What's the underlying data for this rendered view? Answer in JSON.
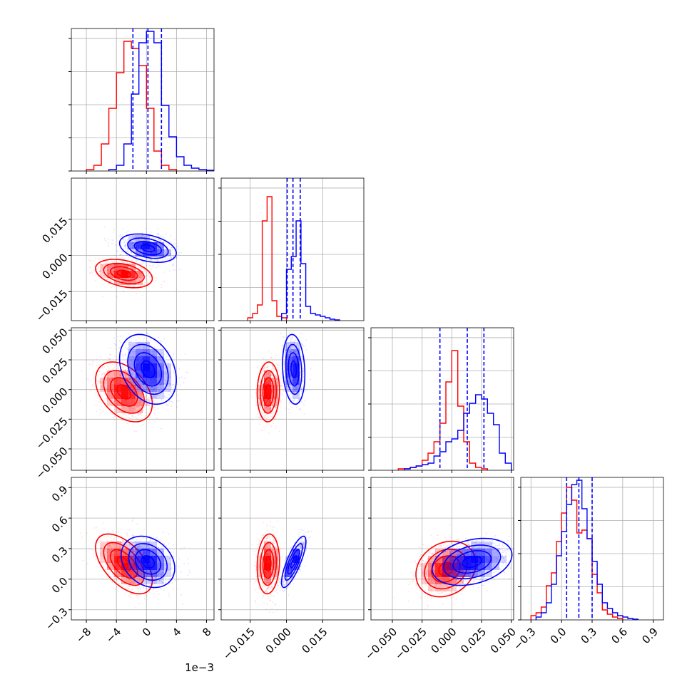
{
  "chart_data": {
    "type": "corner",
    "grid": true,
    "offset_text": "1e−3",
    "parameters": [
      {
        "range": [
          -10,
          9
        ],
        "ticks": [
          -8,
          -4,
          0,
          4,
          8
        ],
        "tick_labels": [
          "−8",
          "−4",
          "0",
          "4",
          "8"
        ]
      },
      {
        "range": [
          -0.027,
          0.032
        ],
        "ticks": [
          -0.015,
          0.0,
          0.015
        ],
        "tick_labels": [
          "−0.015",
          "0.000",
          "0.015"
        ]
      },
      {
        "range": [
          -0.068,
          0.052
        ],
        "ticks": [
          -0.05,
          -0.025,
          0.0,
          0.025,
          0.05
        ],
        "tick_labels": [
          "−0.050",
          "−0.025",
          "0.000",
          "0.025",
          "0.050"
        ]
      },
      {
        "range": [
          -0.4,
          1.0
        ],
        "ticks": [
          -0.3,
          0.0,
          0.3,
          0.6,
          0.9
        ],
        "tick_labels": [
          "−0.3",
          "0.0",
          "0.3",
          "0.6",
          "0.9"
        ]
      }
    ],
    "series": [
      {
        "color": "#ff0000",
        "marginals": [
          {
            "bins": [
              -8.0,
              -7.0,
              -6.0,
              -5.0,
              -4.0,
              -3.0,
              -2.0,
              -1.0,
              0.0,
              1.0,
              2.0,
              3.0
            ],
            "density": [
              0.01,
              0.04,
              0.19,
              0.44,
              0.69,
              0.91,
              0.86,
              0.74,
              0.44,
              0.14,
              0.04,
              0.01
            ]
          },
          {
            "bins": [
              -0.016,
              -0.014,
              -0.012,
              -0.01,
              -0.008,
              -0.006,
              -0.004,
              -0.002
            ],
            "density": [
              0.02,
              0.05,
              0.11,
              0.7,
              0.87,
              0.14,
              0.03,
              0.02
            ]
          },
          {
            "bins": [
              -0.045,
              -0.04,
              -0.035,
              -0.03,
              -0.025,
              -0.02,
              -0.015,
              -0.01,
              -0.005,
              0.0,
              0.005,
              0.01,
              0.015,
              0.02,
              0.025
            ],
            "density": [
              0.01,
              0.01,
              0.02,
              0.03,
              0.07,
              0.12,
              0.2,
              0.33,
              0.62,
              0.84,
              0.45,
              0.2,
              0.05,
              0.02,
              0.01
            ]
          },
          {
            "bins": [
              -0.3,
              -0.25,
              -0.2,
              -0.15,
              -0.1,
              -0.05,
              0.0,
              0.05,
              0.1,
              0.15,
              0.2,
              0.25,
              0.3,
              0.35,
              0.4,
              0.45,
              0.5,
              0.55
            ],
            "density": [
              0.03,
              0.05,
              0.09,
              0.24,
              0.33,
              0.55,
              0.75,
              0.93,
              0.84,
              0.61,
              0.63,
              0.57,
              0.32,
              0.19,
              0.07,
              0.04,
              0.02,
              0.01
            ]
          }
        ],
        "joints": [
          {
            "x": 1,
            "y": 0,
            "mean": [
              -3.0,
              -0.0075
            ],
            "sd": [
              1.8,
              0.0028
            ],
            "rho": -0.35
          },
          {
            "x": 2,
            "y": 0,
            "mean": [
              -3.0,
              -0.002
            ],
            "sd": [
              1.8,
              0.012
            ],
            "rho": -0.4
          },
          {
            "x": 2,
            "y": 1,
            "mean": [
              -0.0075,
              -0.002
            ],
            "sd": [
              0.0022,
              0.012
            ],
            "rho": 0.05
          },
          {
            "x": 3,
            "y": 0,
            "mean": [
              -3.0,
              0.15
            ],
            "sd": [
              1.8,
              0.14
            ],
            "rho": -0.55
          },
          {
            "x": 3,
            "y": 1,
            "mean": [
              -0.0075,
              0.15
            ],
            "sd": [
              0.0022,
              0.14
            ],
            "rho": 0.1
          },
          {
            "x": 3,
            "y": 2,
            "mean": [
              -0.005,
              0.1
            ],
            "sd": [
              0.012,
              0.13
            ],
            "rho": 0.2
          }
        ]
      },
      {
        "color": "#0000ff",
        "marginals": [
          {
            "bins": [
              -5.0,
              -4.0,
              -3.0,
              -2.0,
              -1.0,
              0.0,
              1.0,
              2.0,
              3.0,
              4.0,
              5.0,
              6.0,
              7.0,
              8.0
            ],
            "density": [
              0.01,
              0.04,
              0.19,
              0.54,
              0.9,
              0.98,
              0.9,
              0.46,
              0.24,
              0.1,
              0.04,
              0.02,
              0.01,
              0.005
            ]
          },
          {
            "bins": [
              -0.002,
              0.0,
              0.002,
              0.004,
              0.006,
              0.008,
              0.01,
              0.012,
              0.014,
              0.016,
              0.018,
              0.02
            ],
            "density": [
              0.05,
              0.36,
              0.45,
              0.7,
              0.4,
              0.1,
              0.05,
              0.04,
              0.03,
              0.02,
              0.01,
              0.005
            ]
          },
          {
            "bins": [
              -0.04,
              -0.035,
              -0.03,
              -0.025,
              -0.02,
              -0.015,
              -0.01,
              -0.005,
              0.0,
              0.005,
              0.01,
              0.015,
              0.02,
              0.025,
              0.03,
              0.035,
              0.04,
              0.045
            ],
            "density": [
              0.01,
              0.02,
              0.03,
              0.04,
              0.05,
              0.1,
              0.13,
              0.2,
              0.22,
              0.28,
              0.4,
              0.47,
              0.53,
              0.5,
              0.4,
              0.32,
              0.12,
              0.05
            ]
          },
          {
            "bins": [
              -0.25,
              -0.2,
              -0.15,
              -0.1,
              -0.05,
              0.0,
              0.05,
              0.1,
              0.15,
              0.2,
              0.25,
              0.3,
              0.35,
              0.4,
              0.45,
              0.5,
              0.55,
              0.6,
              0.65,
              0.7
            ],
            "density": [
              0.02,
              0.05,
              0.12,
              0.25,
              0.45,
              0.62,
              0.81,
              0.95,
              0.98,
              0.78,
              0.57,
              0.41,
              0.25,
              0.12,
              0.08,
              0.05,
              0.03,
              0.02,
              0.01,
              0.005
            ]
          }
        ],
        "joints": [
          {
            "x": 1,
            "y": 0,
            "mean": [
              0.2,
              0.003
            ],
            "sd": [
              1.8,
              0.0028
            ],
            "rho": -0.35
          },
          {
            "x": 2,
            "y": 0,
            "mean": [
              0.2,
              0.017
            ],
            "sd": [
              1.8,
              0.014
            ],
            "rho": -0.3
          },
          {
            "x": 2,
            "y": 1,
            "mean": [
              0.003,
              0.017
            ],
            "sd": [
              0.0022,
              0.014
            ],
            "rho": -0.15
          },
          {
            "x": 3,
            "y": 0,
            "mean": [
              0.2,
              0.17
            ],
            "sd": [
              1.7,
              0.12
            ],
            "rho": -0.25
          },
          {
            "x": 3,
            "y": 1,
            "mean": [
              0.003,
              0.17
            ],
            "sd": [
              0.0024,
              0.12
            ],
            "rho": 0.8
          },
          {
            "x": 3,
            "y": 2,
            "mean": [
              0.017,
              0.17
            ],
            "sd": [
              0.016,
              0.11
            ],
            "rho": 0.3
          }
        ]
      }
    ],
    "quantiles": [
      [
        -1.8,
        0.2,
        2.0
      ],
      [
        0.0003,
        0.0027,
        0.0057
      ],
      [
        -0.01,
        0.013,
        0.027
      ],
      [
        0.05,
        0.17,
        0.3
      ]
    ]
  }
}
